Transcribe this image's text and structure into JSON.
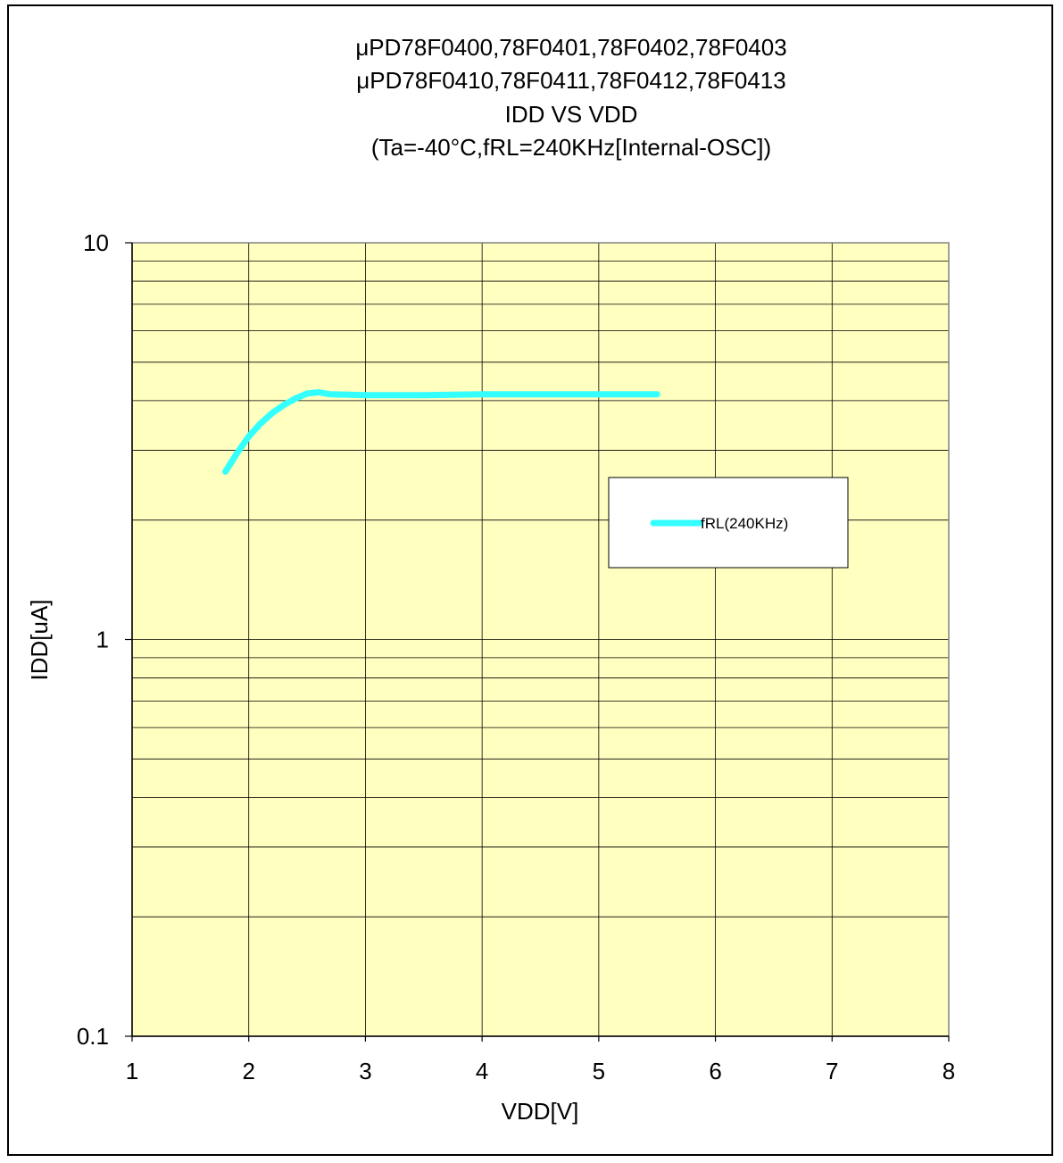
{
  "chart_data": {
    "type": "line",
    "title_lines": [
      "μPD78F0400,78F0401,78F0402,78F0403",
      "μPD78F0410,78F0411,78F0412,78F0413",
      "IDD VS VDD",
      "(Ta=-40°C,fRL=240KHz[Internal-OSC])"
    ],
    "xlabel": "VDD[V]",
    "ylabel": "IDD[uA]",
    "xlim": [
      1,
      8
    ],
    "ylim": [
      0.1,
      10
    ],
    "yscale": "log",
    "x_ticks": [
      1,
      2,
      3,
      4,
      5,
      6,
      7,
      8
    ],
    "x_tick_labels": [
      "1",
      "2",
      "3",
      "4",
      "5",
      "6",
      "7",
      "8"
    ],
    "y_ticks": [
      0.1,
      1,
      10
    ],
    "y_tick_labels": [
      "0.1",
      "1",
      "10"
    ],
    "grid": true,
    "plot_background": "#ffffc0",
    "legend": {
      "position": "right",
      "entries": [
        "fRL(240KHz)"
      ]
    },
    "series": [
      {
        "name": "fRL(240KHz)",
        "color": "#33ffff",
        "x": [
          1.8,
          1.9,
          2.0,
          2.1,
          2.2,
          2.3,
          2.4,
          2.5,
          2.6,
          2.7,
          3.0,
          3.5,
          4.0,
          4.5,
          5.0,
          5.5
        ],
        "y": [
          2.65,
          2.95,
          3.25,
          3.5,
          3.72,
          3.9,
          4.05,
          4.17,
          4.2,
          4.15,
          4.13,
          4.13,
          4.15,
          4.15,
          4.15,
          4.15
        ]
      }
    ]
  }
}
